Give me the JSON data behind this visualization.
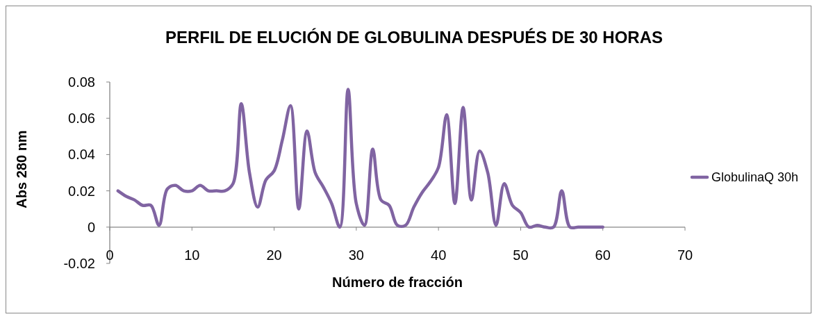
{
  "chart_data": {
    "type": "line",
    "title": "PERFIL DE ELUCIÓN DE GLOBULINA DESPUÉS DE 30 HORAS",
    "xlabel": "Número de fracción",
    "ylabel": "Abs 280 nm",
    "x": [
      1,
      2,
      3,
      4,
      5,
      6,
      7,
      8,
      9,
      10,
      11,
      12,
      13,
      14,
      15,
      16,
      17,
      18,
      19,
      20,
      21,
      22,
      23,
      24,
      25,
      26,
      27,
      28,
      29,
      30,
      31,
      32,
      33,
      34,
      35,
      36,
      37,
      38,
      39,
      40,
      41,
      42,
      43,
      44,
      45,
      46,
      47,
      48,
      49,
      50,
      51,
      52,
      53,
      54,
      55,
      56,
      57,
      58,
      59,
      60
    ],
    "series": [
      {
        "name": "GlobulinaQ 30h",
        "color": "#8064a2",
        "values": [
          0.02,
          0.017,
          0.015,
          0.012,
          0.012,
          0.001,
          0.021,
          0.023,
          0.02,
          0.02,
          0.023,
          0.02,
          0.02,
          0.02,
          0.024,
          0.068,
          0.03,
          0.011,
          0.026,
          0.031,
          0.048,
          0.067,
          0.01,
          0.053,
          0.03,
          0.022,
          0.013,
          0.0,
          0.076,
          0.013,
          0.001,
          0.043,
          0.015,
          0.012,
          0.001,
          0.001,
          0.011,
          0.019,
          0.025,
          0.033,
          0.062,
          0.013,
          0.066,
          0.015,
          0.042,
          0.03,
          0.001,
          0.024,
          0.012,
          0.008,
          0.0,
          0.001,
          0.0,
          0.0,
          0.02,
          0.0,
          0.0,
          0.0,
          0.0,
          0.0
        ]
      }
    ],
    "xlim": [
      0,
      70
    ],
    "xticks": [
      0,
      10,
      20,
      30,
      40,
      50,
      60,
      70
    ],
    "ylim": [
      -0.02,
      0.08
    ],
    "yticks": [
      -0.02,
      0,
      0.02,
      0.04,
      0.06,
      0.08
    ],
    "grid": false,
    "legend": "right",
    "marker": "none",
    "line_style": "solid"
  }
}
